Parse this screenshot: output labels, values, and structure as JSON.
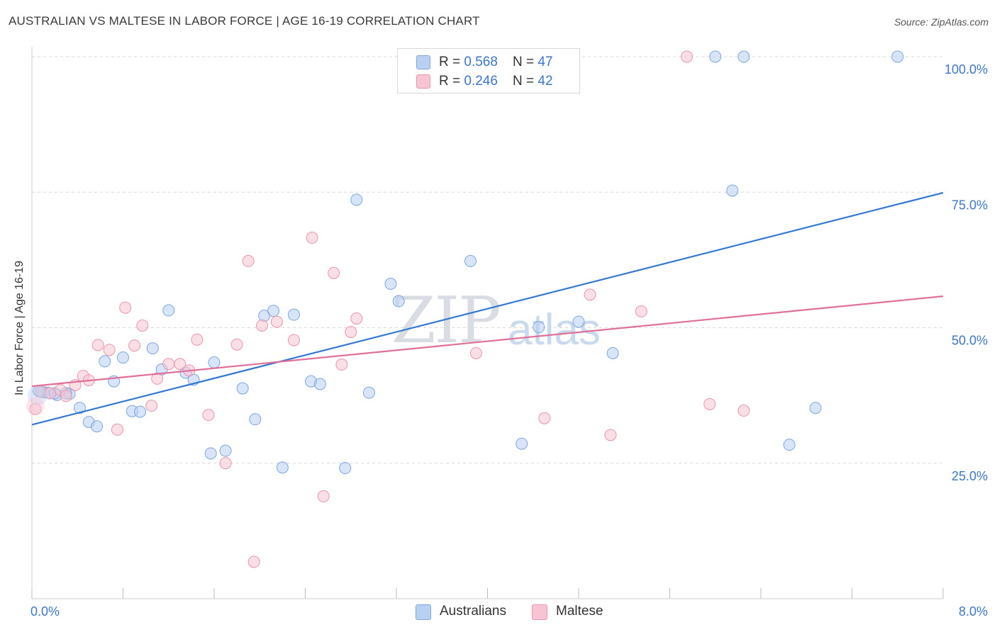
{
  "title": "AUSTRALIAN VS MALTESE IN LABOR FORCE | AGE 16-19 CORRELATION CHART",
  "source": "Source: ZipAtlas.com",
  "watermark": {
    "zip": "ZIP",
    "atlas": "atlas"
  },
  "legend": {
    "australians": {
      "r_label": "R = ",
      "r_value": "0.568",
      "n_label": "N = ",
      "n_value": "47"
    },
    "maltese": {
      "r_label": "R = ",
      "r_value": "0.246",
      "n_label": "N = ",
      "n_value": "42"
    }
  },
  "colors": {
    "australians_fill": "#b8d0f2",
    "australians_stroke": "#7ea6dc",
    "australians_line": "#3578d0",
    "maltese_fill": "#f7c4d3",
    "maltese_stroke": "#e895ae",
    "maltese_line": "#e0709a",
    "tick_text": "#3d76c8",
    "grid": "#d9d9d9"
  },
  "chart_data": {
    "type": "scatter",
    "title": "AUSTRALIAN VS MALTESE IN LABOR FORCE | AGE 16-19 CORRELATION CHART",
    "xlabel": "",
    "ylabel": "In Labor Force | Age 16-19",
    "xlim": [
      0,
      8
    ],
    "ylim": [
      0,
      100
    ],
    "x_tick_labels": [
      "0.0%",
      "8.0%"
    ],
    "y_ticks": [
      25,
      50,
      75,
      100
    ],
    "y_tick_labels": [
      "25.0%",
      "50.0%",
      "75.0%",
      "100.0%"
    ],
    "grid": true,
    "legend_position": "bottom-center",
    "series": [
      {
        "name": "Australians",
        "trend": {
          "x": [
            0,
            8
          ],
          "y": [
            32.1,
            74.9
          ]
        },
        "points": [
          {
            "x": 0.1,
            "y": 38.1
          },
          {
            "x": 0.22,
            "y": 37.6
          },
          {
            "x": 0.33,
            "y": 37.8
          },
          {
            "x": 0.42,
            "y": 35.2
          },
          {
            "x": 0.5,
            "y": 32.6
          },
          {
            "x": 0.57,
            "y": 31.8
          },
          {
            "x": 0.64,
            "y": 43.8
          },
          {
            "x": 0.72,
            "y": 40.1
          },
          {
            "x": 0.8,
            "y": 44.5
          },
          {
            "x": 0.88,
            "y": 34.6
          },
          {
            "x": 0.95,
            "y": 34.5
          },
          {
            "x": 1.06,
            "y": 46.2
          },
          {
            "x": 1.14,
            "y": 42.3
          },
          {
            "x": 1.2,
            "y": 53.2
          },
          {
            "x": 1.35,
            "y": 41.7
          },
          {
            "x": 1.42,
            "y": 40.4
          },
          {
            "x": 1.57,
            "y": 26.8
          },
          {
            "x": 1.6,
            "y": 43.6
          },
          {
            "x": 1.7,
            "y": 27.3
          },
          {
            "x": 1.85,
            "y": 38.8
          },
          {
            "x": 1.96,
            "y": 33.1
          },
          {
            "x": 2.04,
            "y": 52.2
          },
          {
            "x": 2.12,
            "y": 53.1
          },
          {
            "x": 2.2,
            "y": 24.2
          },
          {
            "x": 2.3,
            "y": 52.4
          },
          {
            "x": 2.45,
            "y": 40.1
          },
          {
            "x": 2.53,
            "y": 39.6
          },
          {
            "x": 2.75,
            "y": 24.1
          },
          {
            "x": 2.85,
            "y": 73.6
          },
          {
            "x": 2.96,
            "y": 38.0
          },
          {
            "x": 3.15,
            "y": 58.1
          },
          {
            "x": 3.22,
            "y": 54.9
          },
          {
            "x": 3.85,
            "y": 62.3
          },
          {
            "x": 4.3,
            "y": 28.6
          },
          {
            "x": 4.45,
            "y": 50.1
          },
          {
            "x": 4.8,
            "y": 51.1
          },
          {
            "x": 5.1,
            "y": 45.3
          },
          {
            "x": 6.0,
            "y": 100.0
          },
          {
            "x": 6.15,
            "y": 75.3
          },
          {
            "x": 6.25,
            "y": 100.0
          },
          {
            "x": 6.65,
            "y": 28.4
          },
          {
            "x": 6.88,
            "y": 35.2
          },
          {
            "x": 7.6,
            "y": 100.0
          },
          {
            "x": 0.14,
            "y": 38.0
          },
          {
            "x": 0.2,
            "y": 37.9
          },
          {
            "x": 0.06,
            "y": 38.3
          },
          {
            "x": 0.3,
            "y": 37.9
          }
        ]
      },
      {
        "name": "Maltese",
        "trend": {
          "x": [
            0,
            8
          ],
          "y": [
            39.2,
            55.8
          ]
        },
        "points": [
          {
            "x": 0.03,
            "y": 35.0
          },
          {
            "x": 0.08,
            "y": 38.2
          },
          {
            "x": 0.16,
            "y": 37.9
          },
          {
            "x": 0.25,
            "y": 38.5
          },
          {
            "x": 0.3,
            "y": 37.4
          },
          {
            "x": 0.38,
            "y": 39.4
          },
          {
            "x": 0.45,
            "y": 41.1
          },
          {
            "x": 0.5,
            "y": 40.3
          },
          {
            "x": 0.58,
            "y": 46.8
          },
          {
            "x": 0.68,
            "y": 45.9
          },
          {
            "x": 0.75,
            "y": 31.2
          },
          {
            "x": 0.82,
            "y": 53.7
          },
          {
            "x": 0.9,
            "y": 46.7
          },
          {
            "x": 0.97,
            "y": 50.4
          },
          {
            "x": 1.05,
            "y": 35.6
          },
          {
            "x": 1.1,
            "y": 40.6
          },
          {
            "x": 1.2,
            "y": 43.3
          },
          {
            "x": 1.3,
            "y": 43.3
          },
          {
            "x": 1.38,
            "y": 42.1
          },
          {
            "x": 1.45,
            "y": 47.8
          },
          {
            "x": 1.55,
            "y": 33.9
          },
          {
            "x": 1.7,
            "y": 25.0
          },
          {
            "x": 1.8,
            "y": 46.9
          },
          {
            "x": 1.9,
            "y": 62.3
          },
          {
            "x": 1.95,
            "y": 6.8
          },
          {
            "x": 2.02,
            "y": 50.4
          },
          {
            "x": 2.15,
            "y": 51.1
          },
          {
            "x": 2.3,
            "y": 47.7
          },
          {
            "x": 2.46,
            "y": 66.6
          },
          {
            "x": 2.56,
            "y": 18.9
          },
          {
            "x": 2.65,
            "y": 60.1
          },
          {
            "x": 2.72,
            "y": 43.2
          },
          {
            "x": 2.8,
            "y": 49.2
          },
          {
            "x": 2.85,
            "y": 51.7
          },
          {
            "x": 3.9,
            "y": 45.3
          },
          {
            "x": 4.5,
            "y": 33.3
          },
          {
            "x": 4.9,
            "y": 56.1
          },
          {
            "x": 5.08,
            "y": 30.2
          },
          {
            "x": 5.35,
            "y": 53.0
          },
          {
            "x": 5.95,
            "y": 35.9
          },
          {
            "x": 5.75,
            "y": 100.0
          },
          {
            "x": 6.25,
            "y": 34.7
          }
        ]
      }
    ]
  }
}
